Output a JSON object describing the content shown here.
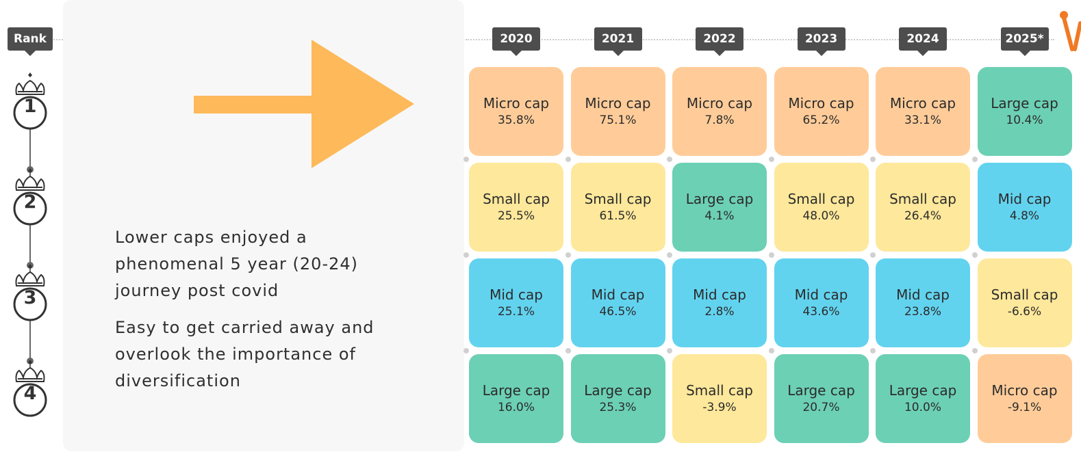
{
  "rank_header": "Rank",
  "ranks": [
    "1",
    "2",
    "3",
    "4"
  ],
  "note": {
    "line1": "Lower caps enjoyed a",
    "line2": "phenomenal 5 year (20-24)",
    "line3": "journey post covid",
    "line4": "Easy to get carried away and",
    "line5": "overlook the importance of",
    "line6": "diversification"
  },
  "colors": {
    "Micro cap": "#ffcc99",
    "Small cap": "#fee89b",
    "Mid cap": "#62d3ef",
    "Large cap": "#6cd0b4",
    "arrow": "#fdb95a",
    "label_bg": "#4d4d4d"
  },
  "chart_data": {
    "type": "table",
    "title": "",
    "columns": [
      "2020",
      "2021",
      "2022",
      "2023",
      "2024",
      "2025*"
    ],
    "rows_label": "Rank",
    "cells": [
      [
        {
          "category": "Micro cap",
          "value": "35.8%"
        },
        {
          "category": "Small cap",
          "value": "25.5%"
        },
        {
          "category": "Mid cap",
          "value": "25.1%"
        },
        {
          "category": "Large cap",
          "value": "16.0%"
        }
      ],
      [
        {
          "category": "Micro cap",
          "value": "75.1%"
        },
        {
          "category": "Small cap",
          "value": "61.5%"
        },
        {
          "category": "Mid cap",
          "value": "46.5%"
        },
        {
          "category": "Large cap",
          "value": "25.3%"
        }
      ],
      [
        {
          "category": "Micro cap",
          "value": "7.8%"
        },
        {
          "category": "Large cap",
          "value": "4.1%"
        },
        {
          "category": "Mid cap",
          "value": "2.8%"
        },
        {
          "category": "Small cap",
          "value": "-3.9%"
        }
      ],
      [
        {
          "category": "Micro cap",
          "value": "65.2%"
        },
        {
          "category": "Small cap",
          "value": "48.0%"
        },
        {
          "category": "Mid cap",
          "value": "43.6%"
        },
        {
          "category": "Large cap",
          "value": "20.7%"
        }
      ],
      [
        {
          "category": "Micro cap",
          "value": "33.1%"
        },
        {
          "category": "Small cap",
          "value": "26.4%"
        },
        {
          "category": "Mid cap",
          "value": "23.8%"
        },
        {
          "category": "Large cap",
          "value": "10.0%"
        }
      ],
      [
        {
          "category": "Large cap",
          "value": "10.4%"
        },
        {
          "category": "Mid cap",
          "value": "4.8%"
        },
        {
          "category": "Small cap",
          "value": "-6.6%"
        },
        {
          "category": "Micro cap",
          "value": "-9.1%"
        }
      ]
    ]
  }
}
